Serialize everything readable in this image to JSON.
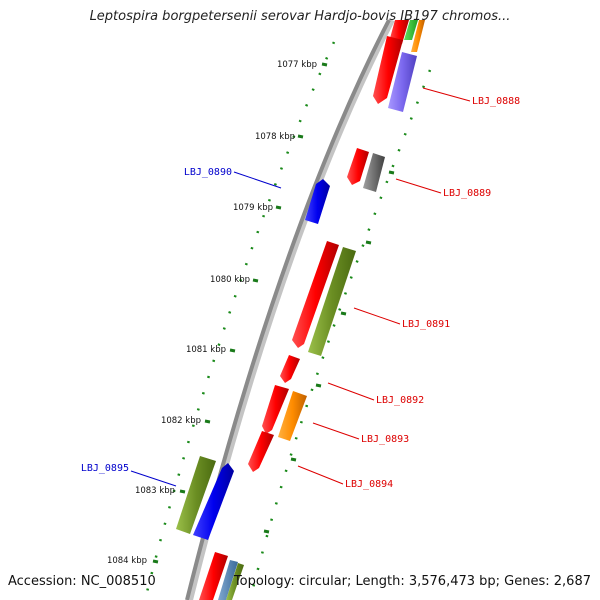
{
  "title": "Leptospira borgpetersenii serovar Hardjo-bovis JB197 chromos...",
  "footer": {
    "accession": "Accession: NC_008510",
    "summary": "Topology: circular; Length: 3,576,473 bp; Genes: 2,687"
  },
  "colors": {
    "backbone": "#8a8a8a",
    "tick_major": "#1a7a1a",
    "tick_minor": "#1a8a1a",
    "red": "#ff0000",
    "blue": "#0000ee",
    "olive": "#6b8e23",
    "gray": "#707070",
    "orange": "#ff8c00",
    "purple": "#7b68ee",
    "label_red": "#dd0000",
    "label_blue": "#0000cc"
  },
  "ticks": [
    {
      "label": "1077 kbp"
    },
    {
      "label": "1078 kbp"
    },
    {
      "label": "1079 kbp"
    },
    {
      "label": "1080 kbp"
    },
    {
      "label": "1081 kbp"
    },
    {
      "label": "1082 kbp"
    },
    {
      "label": "1083 kbp"
    },
    {
      "label": "1084 kbp"
    }
  ],
  "genes": [
    {
      "label": "LBJ_0888",
      "color": "label_red"
    },
    {
      "label": "LBJ_0889",
      "color": "label_red"
    },
    {
      "label": "LBJ_0890",
      "color": "label_blue"
    },
    {
      "label": "LBJ_0891",
      "color": "label_red"
    },
    {
      "label": "LBJ_0892",
      "color": "label_red"
    },
    {
      "label": "LBJ_0893",
      "color": "label_red"
    },
    {
      "label": "LBJ_0894",
      "color": "label_red"
    },
    {
      "label": "LBJ_0895",
      "color": "label_blue"
    }
  ]
}
